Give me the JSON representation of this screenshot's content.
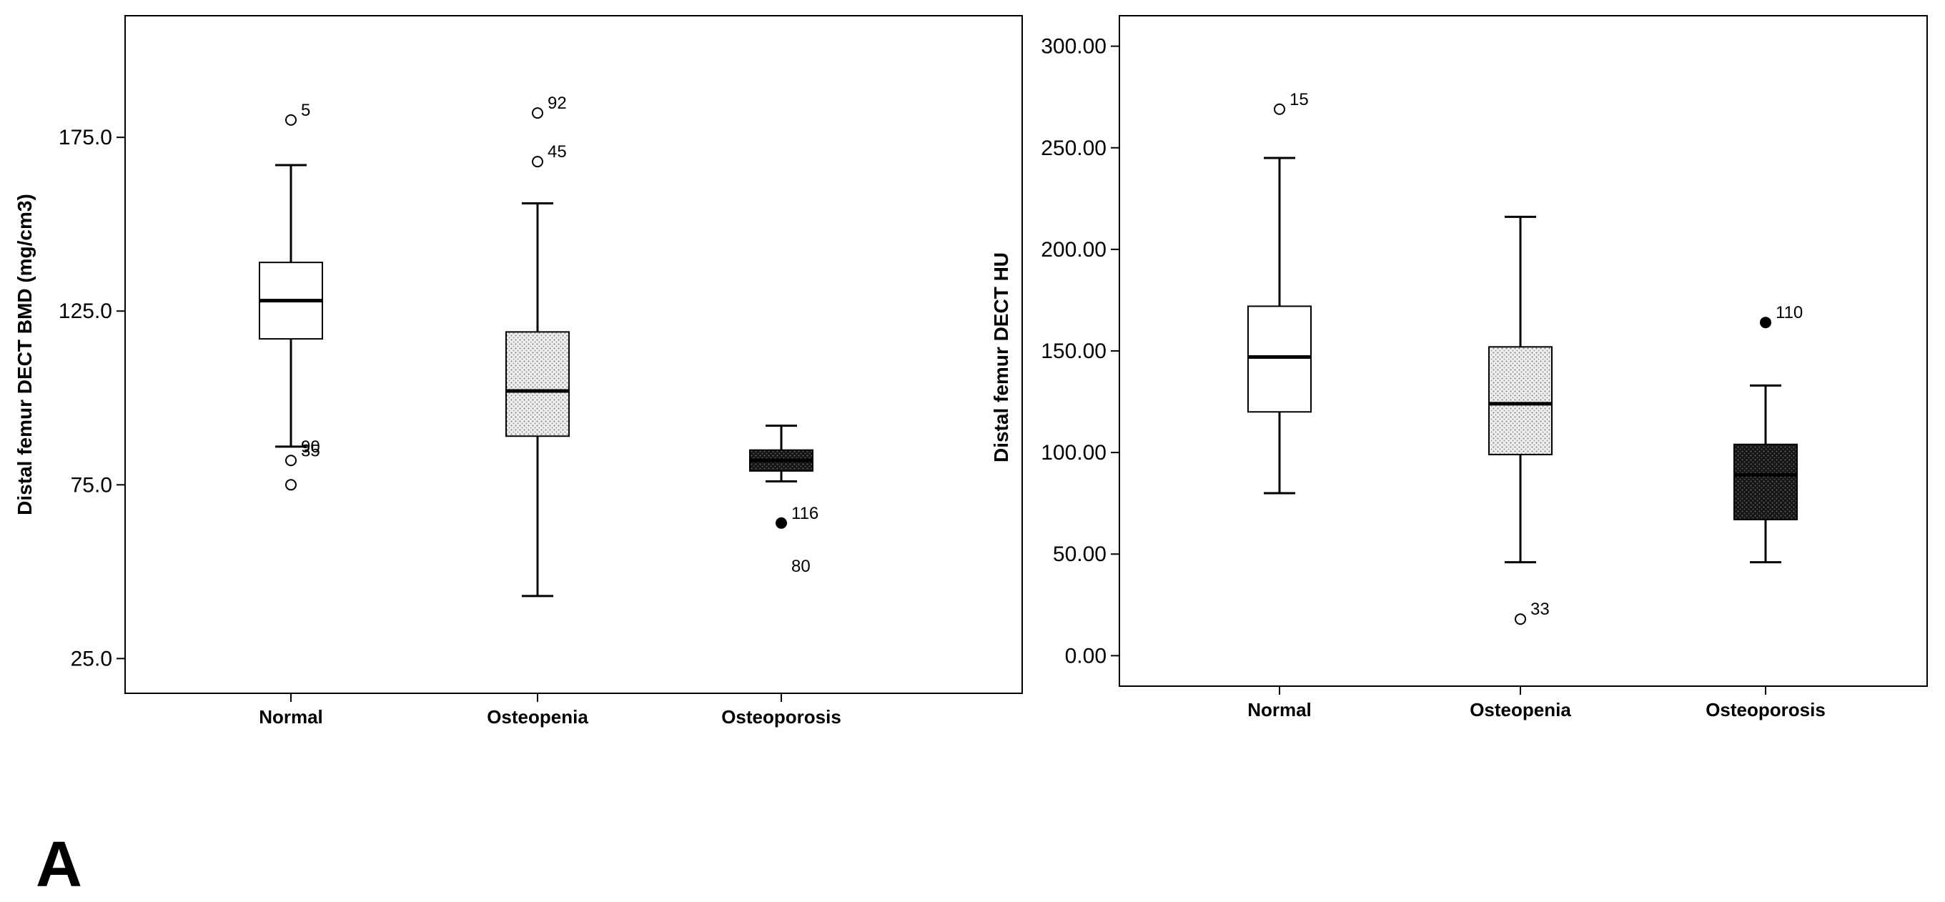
{
  "figure": {
    "panel_label": "A"
  },
  "chart_data": [
    {
      "type": "box",
      "ylabel": "Distal femur DECT BMD (mg/cm3)",
      "categories": [
        "Normal",
        "Osteopenia",
        "Osteoporosis"
      ],
      "ylim": [
        15,
        210
      ],
      "yticks": [
        25.0,
        75.0,
        125.0,
        175.0
      ],
      "ytick_labels": [
        "25.0",
        "75.0",
        "125.0",
        "175.0"
      ],
      "boxes": [
        {
          "category": "Normal",
          "fill": "white",
          "min": 86,
          "q1": 117,
          "median": 128,
          "q3": 139,
          "max": 167,
          "outliers": [
            {
              "value": 180,
              "label": "5",
              "filled": false
            },
            {
              "value": 82,
              "label": "35",
              "filled": false
            },
            {
              "value": 75,
              "label": "",
              "filled": false
            }
          ],
          "annotations": [
            {
              "value": 86,
              "label": "90"
            }
          ]
        },
        {
          "category": "Osteopenia",
          "fill": "light-dotted",
          "min": 43,
          "q1": 89,
          "median": 102,
          "q3": 119,
          "max": 156,
          "outliers": [
            {
              "value": 182,
              "label": "92",
              "filled": false
            },
            {
              "value": 168,
              "label": "45",
              "filled": false
            }
          ],
          "annotations": []
        },
        {
          "category": "Osteoporosis",
          "fill": "dark-dotted",
          "min": 76,
          "q1": 79,
          "median": 82,
          "q3": 85,
          "max": 92,
          "outliers": [
            {
              "value": 64,
              "label": "116",
              "filled": true
            }
          ],
          "annotations": [
            {
              "value": 64,
              "label": "80"
            }
          ]
        }
      ]
    },
    {
      "type": "box",
      "ylabel": "Distal femur DECT HU",
      "categories": [
        "Normal",
        "Osteopenia",
        "Osteoporosis"
      ],
      "ylim": [
        -15,
        315
      ],
      "yticks": [
        0,
        50,
        100,
        150,
        200,
        250,
        300
      ],
      "ytick_labels": [
        "0.00",
        "50.00",
        "100.00",
        "150.00",
        "200.00",
        "250.00",
        "300.00"
      ],
      "boxes": [
        {
          "category": "Normal",
          "fill": "white",
          "min": 80,
          "q1": 120,
          "median": 147,
          "q3": 172,
          "max": 245,
          "outliers": [
            {
              "value": 269,
              "label": "15",
              "filled": false
            }
          ],
          "annotations": []
        },
        {
          "category": "Osteopenia",
          "fill": "light-dotted",
          "min": 46,
          "q1": 99,
          "median": 124,
          "q3": 152,
          "max": 216,
          "outliers": [
            {
              "value": 18,
              "label": "33",
              "filled": false
            }
          ],
          "annotations": []
        },
        {
          "category": "Osteoporosis",
          "fill": "dark-dotted",
          "min": 46,
          "q1": 67,
          "median": 89,
          "q3": 104,
          "max": 133,
          "outliers": [
            {
              "value": 164,
              "label": "110",
              "filled": true
            }
          ],
          "annotations": []
        }
      ]
    }
  ]
}
